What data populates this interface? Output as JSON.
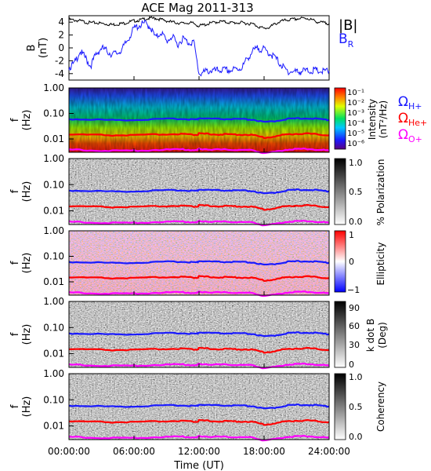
{
  "title": "ACE Mag 2011-313",
  "x_axis": {
    "label": "Time (UT)",
    "ticks": [
      "00:00:00",
      "06:00:00",
      "12:00:00",
      "18:00:00",
      "24:00:00"
    ],
    "tick_hours": [
      0,
      6,
      12,
      18,
      24
    ]
  },
  "legend": {
    "b_total": "|B|",
    "b_r": "B",
    "b_r_sub": "R",
    "omega": "Ω",
    "h_plus_sub": "H+",
    "he_plus_sub": "He+",
    "o_plus_sub": "O+"
  },
  "colors": {
    "b_total": "#000000",
    "b_r": "#1a1aff",
    "h_plus": "#1a1aff",
    "he_plus": "#ff0000",
    "o_plus": "#ff00ff"
  },
  "panels": {
    "b": {
      "ylabel_1": "B",
      "ylabel_2": "(nT)",
      "yticks": [
        "4",
        "2",
        "0",
        "-2",
        "-4"
      ]
    },
    "freq_ylabel_1": "f",
    "freq_ylabel_2": "(Hz)",
    "freq_yticks": [
      "1.00",
      "0.10",
      "0.01"
    ],
    "intensity": {
      "cb_title": "Intensity",
      "cb_unit": "(nT²/Hz)",
      "cb_ticks": [
        "10⁻¹",
        "10⁻²",
        "10⁻³",
        "10⁻⁴",
        "10⁻⁵",
        "10⁻⁶"
      ]
    },
    "polarization": {
      "cb_title": "% Polarization",
      "cb_ticks": [
        "1.0",
        "0.5",
        "0.0"
      ]
    },
    "ellipticity": {
      "cb_title": "Ellipticity",
      "cb_ticks": [
        "1",
        "0",
        "−1"
      ]
    },
    "kdotb": {
      "cb_title": "k dot B",
      "cb_unit": "(Deg)",
      "cb_ticks": [
        "90",
        "60",
        "30",
        "0"
      ]
    },
    "coherency": {
      "cb_title": "Coherency",
      "cb_ticks": [
        "1.0",
        "0.5",
        "0.0"
      ]
    }
  },
  "chart_data": {
    "type": "line",
    "title": "ACE Mag 2011-313",
    "xlabel": "Time (UT)",
    "xlim": [
      0,
      24
    ],
    "b_panel": {
      "ylabel": "B (nT)",
      "ylim": [
        -5,
        5
      ],
      "series": [
        {
          "name": "|B|",
          "x": [
            0,
            0.5,
            1,
            1.5,
            2,
            2.5,
            3,
            3.5,
            4,
            4.5,
            5,
            5.5,
            6,
            6.5,
            7,
            7.5,
            8,
            8.5,
            9,
            9.5,
            10,
            10.5,
            11,
            11.5,
            12,
            12.5,
            13,
            13.5,
            14,
            14.5,
            15,
            15.5,
            16,
            16.5,
            17,
            17.5,
            18,
            18.5,
            19,
            19.5,
            20,
            20.5,
            21,
            21.5,
            22,
            22.5,
            23,
            23.5,
            24
          ],
          "values": [
            4.4,
            4.3,
            4.2,
            4.0,
            3.9,
            3.9,
            3.8,
            3.7,
            3.6,
            3.7,
            3.8,
            4.0,
            4.2,
            4.3,
            4.5,
            4.6,
            4.6,
            4.4,
            4.2,
            4.0,
            3.9,
            3.8,
            3.9,
            3.8,
            3.4,
            3.6,
            3.8,
            4.0,
            4.1,
            4.0,
            3.9,
            3.9,
            3.9,
            3.8,
            3.7,
            3.3,
            3.0,
            3.2,
            3.7,
            4.1,
            4.3,
            4.4,
            4.5,
            4.6,
            4.6,
            4.3,
            4.0,
            3.9,
            3.8
          ]
        },
        {
          "name": "B",
          "x": [
            0,
            0.5,
            1,
            1.5,
            2,
            2.5,
            3,
            3.5,
            4,
            4.5,
            5,
            5.5,
            6,
            6.5,
            7,
            7.5,
            8,
            8.5,
            9,
            9.5,
            10,
            10.5,
            11,
            11.5,
            12,
            12.5,
            13,
            13.5,
            14,
            14.5,
            15,
            15.5,
            16,
            16.5,
            17,
            17.5,
            18,
            18.5,
            19,
            19.5,
            20,
            20.5,
            21,
            21.5,
            22,
            22.5,
            23,
            23.5,
            24
          ],
          "values": [
            -3.0,
            -2.5,
            -0.5,
            -1.5,
            -2.8,
            -1.0,
            0.0,
            -0.5,
            -1.0,
            -0.8,
            0.0,
            1.5,
            3.0,
            3.5,
            3.8,
            3.3,
            1.5,
            2.5,
            1.0,
            1.8,
            0.5,
            1.5,
            0.8,
            1.0,
            -4.0,
            -3.8,
            -3.5,
            -3.6,
            -3.4,
            -3.5,
            -3.5,
            -3.3,
            -3.0,
            -1.5,
            -0.5,
            0.0,
            -0.3,
            -0.8,
            -1.5,
            -2.5,
            -3.5,
            -3.7,
            -3.7,
            -3.6,
            -3.6,
            -3.5,
            -3.6,
            -3.7,
            -3.6
          ]
        }
      ]
    },
    "gyrofrequency_lines": {
      "ylabel": "f (Hz)",
      "scale": "log",
      "ylim": [
        0.003,
        1.0
      ],
      "x": [
        0,
        2,
        4,
        6,
        8,
        10,
        11,
        11.8,
        12,
        13,
        14,
        15,
        16,
        17,
        18,
        19,
        20,
        21,
        22,
        23,
        24
      ],
      "series": [
        {
          "name": "Ω H+",
          "values": [
            0.06,
            0.058,
            0.055,
            0.056,
            0.059,
            0.062,
            0.06,
            0.058,
            0.065,
            0.062,
            0.06,
            0.06,
            0.059,
            0.057,
            0.045,
            0.05,
            0.06,
            0.063,
            0.065,
            0.06,
            0.056
          ]
        },
        {
          "name": "Ω He+",
          "values": [
            0.015,
            0.0145,
            0.0138,
            0.014,
            0.0148,
            0.0155,
            0.015,
            0.0145,
            0.0162,
            0.0155,
            0.015,
            0.015,
            0.0148,
            0.0142,
            0.0112,
            0.0125,
            0.015,
            0.0158,
            0.0162,
            0.015,
            0.014
          ]
        },
        {
          "name": "Ω O+",
          "values": [
            0.0038,
            0.0036,
            0.0034,
            0.0035,
            0.0037,
            0.0039,
            0.0038,
            0.0036,
            0.0041,
            0.0039,
            0.0038,
            0.0038,
            0.0037,
            0.0036,
            0.0028,
            0.0031,
            0.0038,
            0.004,
            0.0041,
            0.0038,
            0.0035
          ]
        }
      ]
    },
    "spectrogram_panels": [
      "Intensity",
      "% Polarization",
      "Ellipticity",
      "k dot B",
      "Coherency"
    ]
  }
}
